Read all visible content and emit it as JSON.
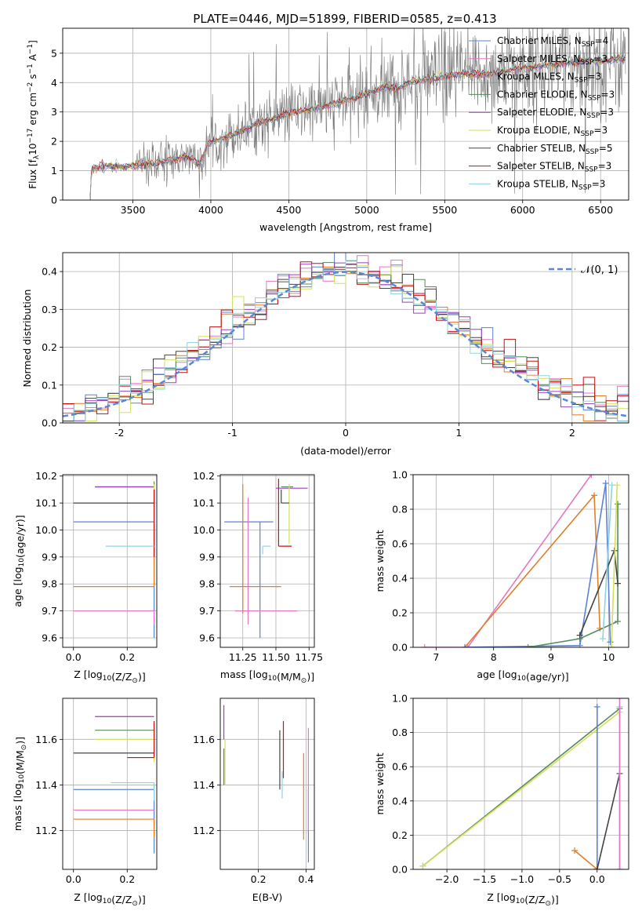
{
  "figure": {
    "title": "PLATE=0446, MJD=51899, FIBERID=0585, z=0.413",
    "colors": {
      "chabrier_miles": "#5a82d8",
      "salpeter_miles": "#e377c2",
      "kroupa_miles": "#e07f2a",
      "chabrier_elodie": "#5a8a60",
      "salpeter_elodie": "#9a3fbf",
      "kroupa_elodie": "#d4e157",
      "chabrier_stelib": "#444444",
      "salpeter_stelib": "#c41010",
      "kroupa_stelib": "#8fd3e0",
      "data": "#777777",
      "normal": "#5b87d5"
    }
  },
  "chart_data": [
    {
      "id": "spectrum",
      "type": "line",
      "xlabel": "wavelength [Angstrom, rest frame]",
      "ylabel": "Flux [f_λ10^-17 erg cm^-2 s^-1 A^-1]",
      "xlim": [
        3050,
        6680
      ],
      "ylim": [
        0,
        5.85
      ],
      "xticks": [
        3500,
        4000,
        4500,
        5000,
        5500,
        6000,
        6500
      ],
      "yticks": [
        0,
        1,
        2,
        3,
        4,
        5
      ],
      "legend": "top-right",
      "legend_entries": [
        {
          "label": "Chabrier MILES, N",
          "sub": "SSP",
          "suffix": "=4",
          "color_key": "chabrier_miles"
        },
        {
          "label": "Salpeter MILES, N",
          "sub": "SSP",
          "suffix": "=3",
          "color_key": "salpeter_miles"
        },
        {
          "label": "Kroupa MILES, N",
          "sub": "SSP",
          "suffix": "=3",
          "color_key": "kroupa_miles"
        },
        {
          "label": "Chabrier ELODIE, N",
          "sub": "SSP",
          "suffix": "=3",
          "color_key": "chabrier_elodie"
        },
        {
          "label": "Salpeter ELODIE, N",
          "sub": "SSP",
          "suffix": "=3",
          "color_key": "salpeter_elodie"
        },
        {
          "label": "Kroupa ELODIE, N",
          "sub": "SSP",
          "suffix": "=3",
          "color_key": "kroupa_elodie"
        },
        {
          "label": "Chabrier STELIB, N",
          "sub": "SSP",
          "suffix": "=5",
          "color_key": "chabrier_stelib"
        },
        {
          "label": "Salpeter STELIB, N",
          "sub": "SSP",
          "suffix": "=3",
          "color_key": "salpeter_stelib"
        },
        {
          "label": "Kroupa STELIB, N",
          "sub": "SSP",
          "suffix": "=3",
          "color_key": "kroupa_stelib"
        }
      ],
      "continuum": [
        [
          3225,
          0
        ],
        [
          3235,
          1.05
        ],
        [
          3300,
          1.15
        ],
        [
          3500,
          1.15
        ],
        [
          3550,
          1.2
        ],
        [
          3700,
          1.3
        ],
        [
          3850,
          1.5
        ],
        [
          3930,
          1.2
        ],
        [
          3980,
          1.9
        ],
        [
          4100,
          2.15
        ],
        [
          4300,
          2.6
        ],
        [
          4500,
          2.95
        ],
        [
          4700,
          3.15
        ],
        [
          4900,
          3.45
        ],
        [
          5000,
          3.6
        ],
        [
          5100,
          3.85
        ],
        [
          5200,
          3.8
        ],
        [
          5300,
          4.05
        ],
        [
          5450,
          4.15
        ],
        [
          5600,
          4.3
        ],
        [
          5800,
          4.3
        ],
        [
          6000,
          4.5
        ],
        [
          6200,
          4.6
        ],
        [
          6400,
          4.75
        ],
        [
          6500,
          4.7
        ],
        [
          6600,
          4.8
        ],
        [
          6660,
          4.8
        ]
      ]
    },
    {
      "id": "residuals",
      "type": "histogram",
      "xlabel": "(data-model)/error",
      "ylabel": "Normed distribution",
      "xlim": [
        -2.5,
        2.5
      ],
      "ylim": [
        0,
        0.45
      ],
      "xticks": [
        -2,
        -1,
        0,
        1,
        2
      ],
      "yticks": [
        0.0,
        0.1,
        0.2,
        0.3,
        0.4
      ],
      "yticklabels": [
        "0.0",
        "0.1",
        "0.2",
        "0.3",
        "0.4"
      ],
      "legend": "top-right",
      "normal_label": "𝒩(0, 1)",
      "bin_width": 0.1
    },
    {
      "id": "age-vs-Z",
      "type": "errorbar",
      "xlabel": "Z [log10(Z/Z⊙)]",
      "ylabel": "age  [log10(age/yr)]",
      "xlim": [
        -0.04,
        0.31
      ],
      "ylim": [
        9.565,
        10.205
      ],
      "xticks": [
        0.0,
        0.2
      ],
      "xticklabels": [
        "0.0",
        "0.2"
      ],
      "yticks": [
        9.6,
        9.7,
        9.8,
        9.9,
        10.0,
        10.1,
        10.2
      ],
      "yticklabels": [
        "9.6",
        "9.7",
        "9.8",
        "9.9",
        "10.0",
        "10.1",
        "10.2"
      ],
      "points": [
        {
          "x": 0.3,
          "y": 10.03,
          "xerr": [
            0.3,
            0.0
          ],
          "yerr": [
            0.43,
            0.0
          ],
          "color_key": "chabrier_miles"
        },
        {
          "x": 0.3,
          "y": 9.7,
          "xerr": [
            0.3,
            0.0
          ],
          "yerr": [
            0.05,
            0.0
          ],
          "color_key": "salpeter_miles"
        },
        {
          "x": 0.3,
          "y": 9.79,
          "xerr": [
            0.3,
            0.0
          ],
          "yerr": [
            0.0,
            0.38
          ],
          "color_key": "kroupa_miles"
        },
        {
          "x": 0.3,
          "y": 10.16,
          "xerr": [
            0.22,
            0.0
          ],
          "yerr": [
            0.0,
            0.02
          ],
          "color_key": "chabrier_elodie"
        },
        {
          "x": 0.3,
          "y": 10.16,
          "xerr": [
            0.22,
            0.0
          ],
          "yerr": [
            0.0,
            0.0
          ],
          "color_key": "salpeter_elodie"
        },
        {
          "x": 0.3,
          "y": 10.15,
          "xerr": [
            0.0,
            0.0
          ],
          "yerr": [
            0.2,
            0.02
          ],
          "color_key": "kroupa_elodie"
        },
        {
          "x": 0.3,
          "y": 10.1,
          "xerr": [
            0.3,
            0.0
          ],
          "yerr": [
            0.0,
            0.05
          ],
          "color_key": "chabrier_stelib"
        },
        {
          "x": 0.3,
          "y": 9.9,
          "xerr": [
            0.0,
            0.0
          ],
          "yerr": [
            0.0,
            0.25
          ],
          "color_key": "salpeter_stelib"
        },
        {
          "x": 0.3,
          "y": 9.94,
          "xerr": [
            0.18,
            0.0
          ],
          "yerr": [
            0.0,
            0.0
          ],
          "color_key": "kroupa_stelib"
        }
      ]
    },
    {
      "id": "age-vs-mass",
      "type": "errorbar",
      "xlabel": "mass [log10(M/M⊙)]",
      "ylabel": "",
      "xlim": [
        11.08,
        11.79
      ],
      "ylim": [
        9.565,
        10.205
      ],
      "xticks": [
        11.25,
        11.5,
        11.75
      ],
      "xticklabels": [
        "11.25",
        "11.50",
        "11.75"
      ],
      "yticks": [
        9.6,
        9.7,
        9.8,
        9.9,
        10.0,
        10.1,
        10.2
      ],
      "yticklabels": [
        "9.6",
        "9.7",
        "9.8",
        "9.9",
        "10.0",
        "10.1",
        "10.2"
      ],
      "points": [
        {
          "x": 11.38,
          "y": 10.03,
          "xerr": [
            0.27,
            0.1
          ],
          "yerr": [
            0.43,
            0.0
          ],
          "color_key": "chabrier_miles"
        },
        {
          "x": 11.29,
          "y": 9.7,
          "xerr": [
            0.1,
            0.37
          ],
          "yerr": [
            0.05,
            0.42
          ],
          "color_key": "salpeter_miles"
        },
        {
          "x": 11.25,
          "y": 9.79,
          "xerr": [
            0.1,
            0.29
          ],
          "yerr": [
            0.1,
            0.38
          ],
          "color_key": "kroupa_miles"
        },
        {
          "x": 11.63,
          "y": 10.16,
          "xerr": [
            0.09,
            0.0
          ],
          "yerr": [
            0.0,
            0.0
          ],
          "color_key": "chabrier_elodie"
        },
        {
          "x": 11.7,
          "y": 10.155,
          "xerr": [
            0.2,
            0.04
          ],
          "yerr": [
            0.0,
            0.0
          ],
          "color_key": "salpeter_elodie"
        },
        {
          "x": 11.6,
          "y": 10.15,
          "xerr": [
            0.0,
            0.0
          ],
          "yerr": [
            0.2,
            0.02
          ],
          "color_key": "kroupa_elodie"
        },
        {
          "x": 11.54,
          "y": 10.1,
          "xerr": [
            0.0,
            0.06
          ],
          "yerr": [
            0.0,
            0.05
          ],
          "color_key": "chabrier_stelib"
        },
        {
          "x": 11.52,
          "y": 9.94,
          "xerr": [
            0.0,
            0.1
          ],
          "yerr": [
            0.0,
            0.25
          ],
          "color_key": "salpeter_stelib"
        },
        {
          "x": 11.4,
          "y": 9.94,
          "xerr": [
            0.0,
            0.06
          ],
          "yerr": [
            0.03,
            0.0
          ],
          "color_key": "kroupa_stelib"
        }
      ]
    },
    {
      "id": "mass-weight-vs-age",
      "type": "line",
      "xlabel": "age  [log10(age/yr)]",
      "ylabel": "mass weight",
      "xlim": [
        6.6,
        10.35
      ],
      "ylim": [
        0,
        1.0
      ],
      "xticks": [
        7,
        8,
        9,
        10
      ],
      "yticks": [
        0.0,
        0.2,
        0.4,
        0.6,
        0.8,
        1.0
      ],
      "yticklabels": [
        "0.0",
        "0.2",
        "0.4",
        "0.6",
        "0.8",
        "1.0"
      ],
      "series": [
        {
          "color_key": "salpeter_miles",
          "x": [
            6.8,
            7.55,
            9.7
          ],
          "y": [
            0.0,
            0.0,
            1.0
          ]
        },
        {
          "color_key": "kroupa_miles",
          "x": [
            7.5,
            9.75,
            9.85
          ],
          "y": [
            0.0,
            0.88,
            0.11
          ]
        },
        {
          "color_key": "chabrier_miles",
          "x": [
            7.5,
            9.5,
            9.95,
            10.03
          ],
          "y": [
            0.0,
            0.01,
            0.95,
            0.03
          ]
        },
        {
          "color_key": "chabrier_elodie",
          "x": [
            8.6,
            9.5,
            10.16,
            10.16
          ],
          "y": [
            0.0,
            0.05,
            0.15,
            0.83
          ]
        },
        {
          "color_key": "chabrier_stelib",
          "x": [
            9.5,
            10.1,
            10.16
          ],
          "y": [
            0.07,
            0.56,
            0.37
          ]
        },
        {
          "color_key": "kroupa_elodie",
          "x": [
            10.05,
            10.15
          ],
          "y": [
            0.0,
            0.94
          ]
        },
        {
          "color_key": "kroupa_stelib",
          "x": [
            9.9,
            10.06
          ],
          "y": [
            0.05,
            0.94
          ]
        }
      ]
    },
    {
      "id": "mass-vs-Z",
      "type": "errorbar",
      "xlabel": "Z [log10(Z/Z⊙)]",
      "ylabel": "mass [log10(M/M⊙)]",
      "xlim": [
        -0.04,
        0.31
      ],
      "ylim": [
        11.03,
        11.78
      ],
      "xticks": [
        0.0,
        0.2
      ],
      "xticklabels": [
        "0.0",
        "0.2"
      ],
      "yticks": [
        11.2,
        11.4,
        11.6
      ],
      "yticklabels": [
        "11.2",
        "11.4",
        "11.6"
      ],
      "points": [
        {
          "x": 0.3,
          "y": 11.38,
          "xerr": [
            0.3,
            0.0
          ],
          "yerr": [
            0.28,
            0.0
          ],
          "color_key": "chabrier_miles"
        },
        {
          "x": 0.3,
          "y": 11.29,
          "xerr": [
            0.3,
            0.0
          ],
          "yerr": [
            0.0,
            0.0
          ],
          "color_key": "salpeter_miles"
        },
        {
          "x": 0.3,
          "y": 11.25,
          "xerr": [
            0.3,
            0.0
          ],
          "yerr": [
            0.08,
            0.0
          ],
          "color_key": "kroupa_miles"
        },
        {
          "x": 0.3,
          "y": 11.64,
          "xerr": [
            0.22,
            0.0
          ],
          "yerr": [
            0.0,
            0.0
          ],
          "color_key": "chabrier_elodie"
        },
        {
          "x": 0.3,
          "y": 11.7,
          "xerr": [
            0.22,
            0.0
          ],
          "yerr": [
            0.0,
            0.0
          ],
          "color_key": "salpeter_elodie"
        },
        {
          "x": 0.3,
          "y": 11.6,
          "xerr": [
            0.22,
            0.0
          ],
          "yerr": [
            0.1,
            0.08
          ],
          "color_key": "kroupa_elodie"
        },
        {
          "x": 0.3,
          "y": 11.54,
          "xerr": [
            0.3,
            0.0
          ],
          "yerr": [
            0.0,
            0.0
          ],
          "color_key": "chabrier_stelib"
        },
        {
          "x": 0.3,
          "y": 11.52,
          "xerr": [
            0.1,
            0.0
          ],
          "yerr": [
            0.0,
            0.16
          ],
          "color_key": "salpeter_stelib"
        },
        {
          "x": 0.3,
          "y": 11.41,
          "xerr": [
            0.16,
            0.0
          ],
          "yerr": [
            0.08,
            0.0
          ],
          "color_key": "kroupa_stelib"
        }
      ]
    },
    {
      "id": "mass-vs-ebv",
      "type": "errorbar",
      "xlabel": "E(B-V)",
      "ylabel": "",
      "xlim": [
        0.04,
        0.435
      ],
      "ylim": [
        11.03,
        11.78
      ],
      "xticks": [
        0.2,
        0.4
      ],
      "xticklabels": [
        "0.2",
        "0.4"
      ],
      "yticks": [
        11.2,
        11.4,
        11.6
      ],
      "yticklabels": [
        "11.2",
        "11.4",
        "11.6"
      ],
      "points": [
        {
          "x": 0.41,
          "y": 11.38,
          "xerr": [
            0,
            0
          ],
          "yerr": [
            0.32,
            0.0
          ],
          "color_key": "chabrier_miles"
        },
        {
          "x": 0.41,
          "y": 11.4,
          "xerr": [
            0,
            0
          ],
          "yerr": [
            0.2,
            0.25
          ],
          "color_key": "salpeter_miles"
        },
        {
          "x": 0.39,
          "y": 11.35,
          "xerr": [
            0,
            0
          ],
          "yerr": [
            0.19,
            0.19
          ],
          "color_key": "kroupa_miles"
        },
        {
          "x": 0.055,
          "y": 11.4,
          "xerr": [
            0,
            0
          ],
          "yerr": [
            0.0,
            0.16
          ],
          "color_key": "chabrier_elodie"
        },
        {
          "x": 0.055,
          "y": 11.6,
          "xerr": [
            0,
            0
          ],
          "yerr": [
            0.0,
            0.15
          ],
          "color_key": "salpeter_elodie"
        },
        {
          "x": 0.06,
          "y": 11.5,
          "xerr": [
            0,
            0
          ],
          "yerr": [
            0.1,
            0.1
          ],
          "color_key": "kroupa_elodie"
        },
        {
          "x": 0.29,
          "y": 11.5,
          "xerr": [
            0,
            0
          ],
          "yerr": [
            0.12,
            0.14
          ],
          "color_key": "chabrier_stelib"
        },
        {
          "x": 0.305,
          "y": 11.55,
          "xerr": [
            0,
            0
          ],
          "yerr": [
            0.12,
            0.13
          ],
          "color_key": "salpeter_stelib"
        },
        {
          "x": 0.3,
          "y": 11.4,
          "xerr": [
            0,
            0
          ],
          "yerr": [
            0.06,
            0.06
          ],
          "color_key": "kroupa_stelib"
        }
      ]
    },
    {
      "id": "mass-weight-vs-Z",
      "type": "line",
      "xlabel": "Z [log10(Z/Z⊙)]",
      "ylabel": "mass weight",
      "xlim": [
        -2.45,
        0.42
      ],
      "ylim": [
        0,
        1.0
      ],
      "xticks": [
        -2.0,
        -1.5,
        -1.0,
        -0.5,
        0.0
      ],
      "xticklabels": [
        "−2.0",
        "−1.5",
        "−1.0",
        "−0.5",
        "0.0"
      ],
      "yticks": [
        0.0,
        0.2,
        0.4,
        0.6,
        0.8,
        1.0
      ],
      "yticklabels": [
        "0.0",
        "0.2",
        "0.4",
        "0.6",
        "0.8",
        "1.0"
      ],
      "series": [
        {
          "color_key": "chabrier_elodie",
          "x": [
            -2.32,
            0.3
          ],
          "y": [
            0.02,
            0.94
          ]
        },
        {
          "color_key": "kroupa_elodie",
          "x": [
            -2.32,
            0.3
          ],
          "y": [
            0.02,
            0.92
          ]
        },
        {
          "color_key": "kroupa_miles",
          "x": [
            -0.3,
            0.0
          ],
          "y": [
            0.11,
            0.0
          ]
        },
        {
          "color_key": "chabrier_miles",
          "x": [
            0.0,
            0.0
          ],
          "y": [
            0.95,
            0.0
          ]
        },
        {
          "color_key": "chabrier_stelib",
          "x": [
            0.0,
            0.3
          ],
          "y": [
            0.0,
            0.56
          ]
        },
        {
          "color_key": "kroupa_stelib",
          "x": [
            0.3,
            0.3
          ],
          "y": [
            0.0,
            0.95
          ]
        },
        {
          "color_key": "salpeter_miles",
          "x": [
            0.3,
            0.3
          ],
          "y": [
            0.0,
            1.0
          ]
        }
      ]
    }
  ]
}
